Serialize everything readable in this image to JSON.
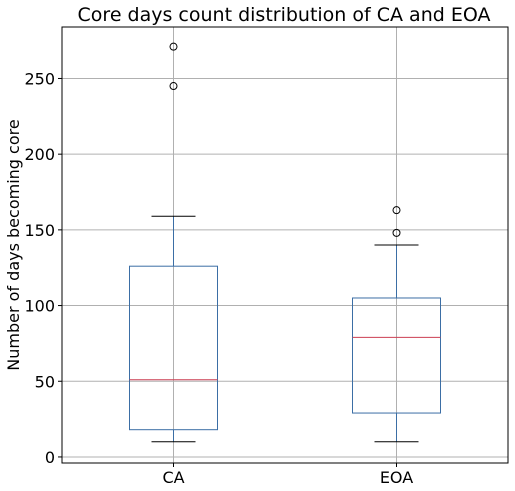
{
  "chart_data": {
    "type": "boxplot",
    "title": "Core days count distribution of CA and EOA",
    "xlabel": "",
    "ylabel": "Number of days becoming core",
    "categories": [
      "CA",
      "EOA"
    ],
    "boxes": [
      {
        "category": "CA",
        "whisker_low": 10,
        "q1": 18,
        "median": 51,
        "q3": 126,
        "whisker_high": 159,
        "outliers": [
          245,
          271
        ]
      },
      {
        "category": "EOA",
        "whisker_low": 10,
        "q1": 29,
        "median": 79,
        "q3": 105,
        "whisker_high": 140,
        "outliers": [
          148,
          163
        ]
      }
    ],
    "y_ticks": [
      0,
      50,
      100,
      150,
      200,
      250
    ],
    "ylim": [
      -4,
      284
    ],
    "grid": true,
    "legend": "none",
    "colors": {
      "box": "#3b6ea5",
      "median": "#cc3f52",
      "whisker": "#3b6ea5",
      "cap": "#000000",
      "grid": "#b0b0b0",
      "frame": "#000000"
    }
  }
}
